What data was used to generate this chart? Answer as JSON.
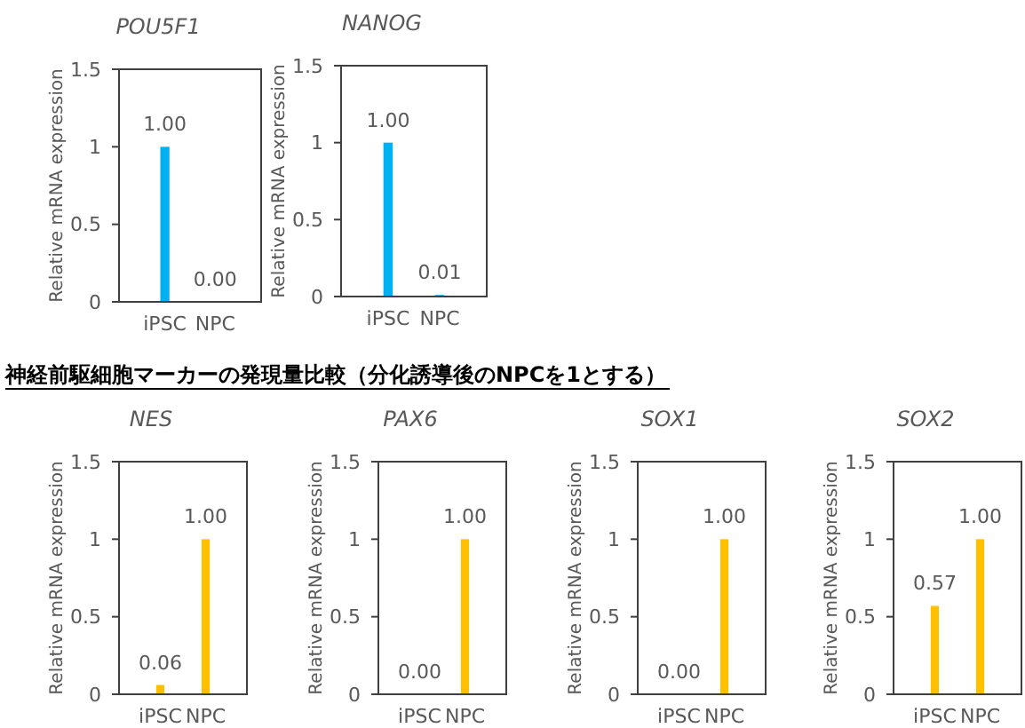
{
  "chart_data": [
    {
      "type": "bar",
      "title": "POU5F1",
      "ylabel": "Relative mRNA expression",
      "categories": [
        "iPSC",
        "NPC"
      ],
      "values": [
        1,
        0
      ],
      "value_labels": [
        "1.00",
        "0.00"
      ],
      "color": "#00b0f0",
      "ylim": [
        0,
        1.5
      ],
      "yticks": [
        0,
        0.5,
        1,
        1.5
      ],
      "grid": false
    },
    {
      "type": "bar",
      "title": "NANOG",
      "ylabel": "Relative mRNA expression",
      "categories": [
        "iPSC",
        "NPC"
      ],
      "values": [
        1,
        0.01
      ],
      "value_labels": [
        "1.00",
        "0.01"
      ],
      "color": "#00b0f0",
      "ylim": [
        0,
        1.5
      ],
      "yticks": [
        0,
        0.5,
        1,
        1.5
      ],
      "grid": false
    },
    {
      "type": "bar",
      "title": "NES",
      "ylabel": "Relative mRNA expression",
      "categories": [
        "iPSC",
        "NPC"
      ],
      "values": [
        0.06,
        1
      ],
      "value_labels": [
        "0.06",
        "1.00"
      ],
      "color": "#ffc000",
      "ylim": [
        0,
        1.5
      ],
      "yticks": [
        0,
        0.5,
        1,
        1.5
      ],
      "grid": false,
      "annotations": [
        "神経前駆細胞マーカーの発現量比較（分化誘導後のNPCを1とする）"
      ]
    },
    {
      "type": "bar",
      "title": "PAX6",
      "ylabel": "Relative mRNA expression",
      "categories": [
        "iPSC",
        "NPC"
      ],
      "values": [
        0,
        1
      ],
      "value_labels": [
        "0.00",
        "1.00"
      ],
      "color": "#ffc000",
      "ylim": [
        0,
        1.5
      ],
      "yticks": [
        0,
        0.5,
        1,
        1.5
      ],
      "grid": false
    },
    {
      "type": "bar",
      "title": "SOX1",
      "ylabel": "Relative mRNA expression",
      "categories": [
        "iPSC",
        "NPC"
      ],
      "values": [
        0,
        1
      ],
      "value_labels": [
        "0.00",
        "1.00"
      ],
      "color": "#ffc000",
      "ylim": [
        0,
        1.5
      ],
      "yticks": [
        0,
        0.5,
        1,
        1.5
      ],
      "grid": false
    },
    {
      "type": "bar",
      "title": "SOX2",
      "ylabel": "Relative mRNA expression",
      "categories": [
        "iPSC",
        "NPC"
      ],
      "values": [
        0.57,
        1
      ],
      "value_labels": [
        "0.57",
        "1.00"
      ],
      "color": "#ffc000",
      "ylim": [
        0,
        1.5
      ],
      "yticks": [
        0,
        0.5,
        1,
        1.5
      ],
      "grid": false
    }
  ]
}
